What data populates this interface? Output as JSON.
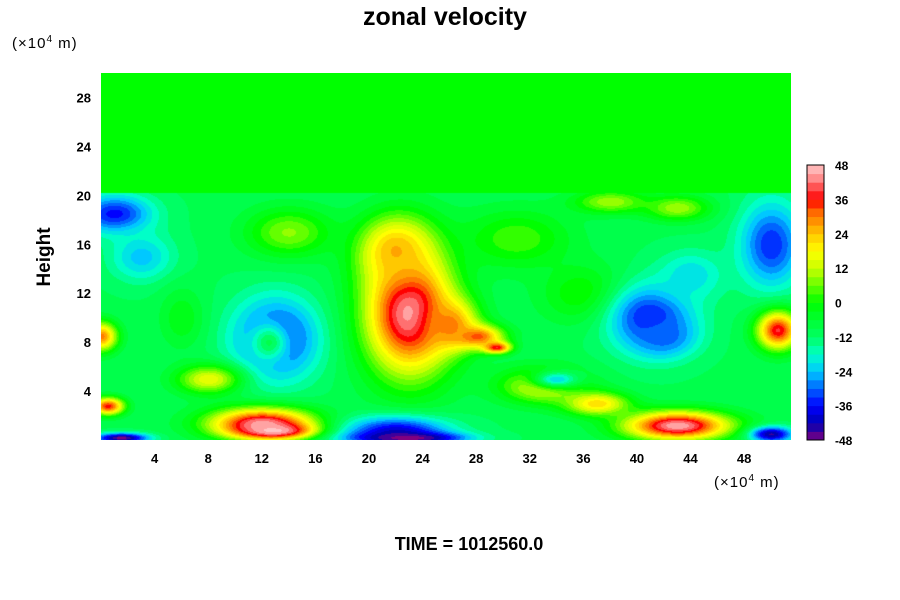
{
  "chart_data": {
    "type": "heatmap",
    "title": "zonal velocity",
    "xlabel": "",
    "ylabel": "Height",
    "x_unit_prefix": "(×10",
    "x_unit_exp": "4",
    "x_unit_suffix": " m)",
    "y_unit_prefix": "(×10",
    "y_unit_exp": "4",
    "y_unit_suffix": " m)",
    "xlim": [
      0,
      51.5
    ],
    "ylim": [
      0,
      30
    ],
    "x_ticks": [
      4,
      8,
      12,
      16,
      20,
      24,
      28,
      32,
      36,
      40,
      44,
      48
    ],
    "y_ticks": [
      4,
      8,
      12,
      16,
      20,
      24,
      28
    ],
    "colorbar": {
      "min": -48,
      "max": 48,
      "ticks": [
        48,
        36,
        24,
        12,
        0,
        -12,
        -24,
        -36,
        -48
      ],
      "colors": [
        "#800080",
        "#0000b4",
        "#0000ff",
        "#0064ff",
        "#00c8ff",
        "#00ffc8",
        "#00ff64",
        "#00ff00",
        "#64ff00",
        "#c8ff00",
        "#ffff00",
        "#ffc800",
        "#ff9600",
        "#ff6400",
        "#ff0000",
        "#ff4a4a",
        "#ff9696",
        "#ffc8c8"
      ],
      "color_stops": [
        -48,
        -42,
        -36,
        -30,
        -24,
        -18,
        -12,
        0,
        6,
        12,
        18,
        24,
        28,
        32,
        36,
        40,
        44,
        48
      ]
    },
    "top_layer_value": 0,
    "top_layer_from_height": 20.2,
    "background_value": -10,
    "features": [
      {
        "x": 13,
        "y": 8.3,
        "rx": 4,
        "ry": 4.2,
        "value": -38
      },
      {
        "x": 12.5,
        "y": 8,
        "rx": 2,
        "ry": 2.2,
        "value": -10
      },
      {
        "x": 23,
        "y": 10.5,
        "rx": 4.2,
        "ry": 6.5,
        "value": 46
      },
      {
        "x": 22,
        "y": 15.5,
        "rx": 3.5,
        "ry": 3.5,
        "value": 26
      },
      {
        "x": 28,
        "y": 8.5,
        "rx": 2.5,
        "ry": 1.2,
        "value": 34
      },
      {
        "x": 29.5,
        "y": 7.6,
        "rx": 1.3,
        "ry": 0.6,
        "value": 38
      },
      {
        "x": 26,
        "y": 9.5,
        "rx": 2.5,
        "ry": 2.5,
        "value": 30
      },
      {
        "x": 14,
        "y": 17,
        "rx": 4,
        "ry": 2.5,
        "value": 8
      },
      {
        "x": 31,
        "y": 16.5,
        "rx": 5,
        "ry": 3,
        "value": 4
      },
      {
        "x": 36,
        "y": 12,
        "rx": 4,
        "ry": 3,
        "value": 2
      },
      {
        "x": 41,
        "y": 10,
        "rx": 4,
        "ry": 3.5,
        "value": -36
      },
      {
        "x": 42,
        "y": 8.5,
        "rx": 2.8,
        "ry": 2,
        "value": -30
      },
      {
        "x": 44,
        "y": 13.5,
        "rx": 3,
        "ry": 2.5,
        "value": -22
      },
      {
        "x": 50,
        "y": 16,
        "rx": 3,
        "ry": 4.5,
        "value": -34
      },
      {
        "x": 1,
        "y": 18.5,
        "rx": 3.5,
        "ry": 2,
        "value": -36
      },
      {
        "x": 3,
        "y": 15,
        "rx": 3,
        "ry": 2.5,
        "value": -24
      },
      {
        "x": 38,
        "y": 19.5,
        "rx": 3.5,
        "ry": 1.2,
        "value": 10
      },
      {
        "x": 43,
        "y": 19,
        "rx": 3,
        "ry": 1.3,
        "value": 10
      },
      {
        "x": 50.5,
        "y": 9,
        "rx": 2,
        "ry": 2,
        "value": 38
      },
      {
        "x": 0,
        "y": 8.5,
        "rx": 1.5,
        "ry": 1.5,
        "value": 30
      },
      {
        "x": 0.5,
        "y": 2.8,
        "rx": 1.5,
        "ry": 0.9,
        "value": 36
      },
      {
        "x": 12,
        "y": 1.4,
        "rx": 5,
        "ry": 1.6,
        "value": 44
      },
      {
        "x": 13,
        "y": 0.8,
        "rx": 3.5,
        "ry": 0.8,
        "value": 48
      },
      {
        "x": 22,
        "y": 0.7,
        "rx": 5,
        "ry": 1.6,
        "value": -40
      },
      {
        "x": 23,
        "y": 0.2,
        "rx": 5,
        "ry": 0.6,
        "value": -48
      },
      {
        "x": 1.5,
        "y": 0.2,
        "rx": 2.5,
        "ry": 0.5,
        "value": -48
      },
      {
        "x": 43,
        "y": 1.2,
        "rx": 5,
        "ry": 1.5,
        "value": 46
      },
      {
        "x": 50,
        "y": 0.5,
        "rx": 2,
        "ry": 0.8,
        "value": -44
      },
      {
        "x": 8,
        "y": 5,
        "rx": 3,
        "ry": 1.5,
        "value": 16
      },
      {
        "x": 33,
        "y": 4.5,
        "rx": 4,
        "ry": 1.8,
        "value": 18
      },
      {
        "x": 37,
        "y": 3,
        "rx": 3,
        "ry": 1.2,
        "value": 22
      },
      {
        "x": 34,
        "y": 5,
        "rx": 2.5,
        "ry": 1,
        "value": -22
      },
      {
        "x": 6,
        "y": 10,
        "rx": 2,
        "ry": 3,
        "value": -2
      }
    ]
  },
  "time_label": "TIME = 1012560.0"
}
